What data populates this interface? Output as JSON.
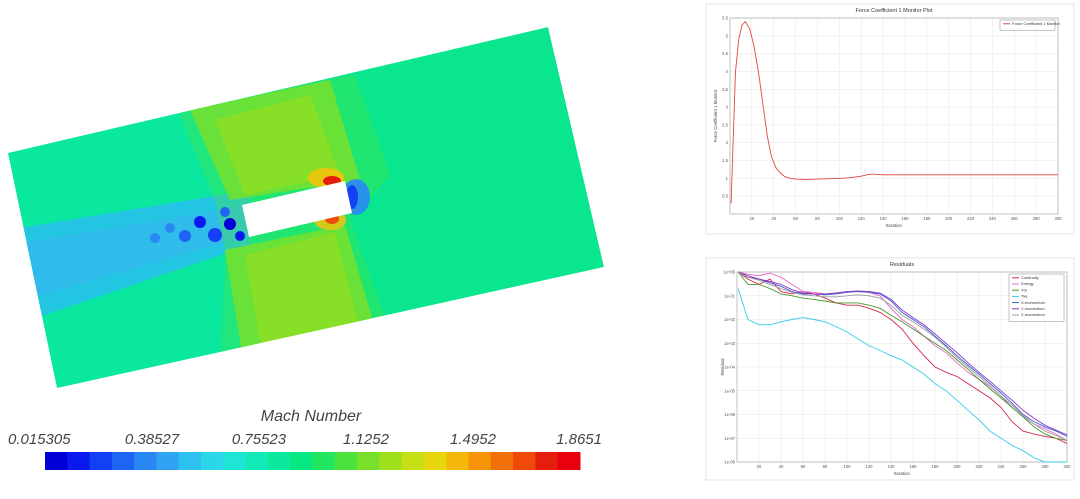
{
  "contour": {
    "colorbar_title": "Mach Number",
    "colorbar_ticks": [
      "0.015305",
      "0.38527",
      "0.75523",
      "1.1252",
      "1.4952",
      "1.8651"
    ],
    "colorbar_colors": [
      "#0000d6",
      "#0a1aef",
      "#1440f5",
      "#1e64f5",
      "#2a88f5",
      "#30a4f2",
      "#2ec0ef",
      "#2ad6e8",
      "#1fe6d4",
      "#14eab8",
      "#0ae99c",
      "#08e882",
      "#22e560",
      "#4ce23c",
      "#78e02a",
      "#a0df1c",
      "#c6de14",
      "#e8d60c",
      "#f5b80a",
      "#f59408",
      "#f27008",
      "#ef4a0a",
      "#e51d0d",
      "#e8000e"
    ]
  },
  "chart_data": [
    {
      "type": "line",
      "title": "Force Coefficient 1 Monitor Plot",
      "xlabel": "Iteration",
      "ylabel": "Force Coefficient 1 Monitor",
      "legend": [
        "Force Coefficient 1 Monitor"
      ],
      "legend_position": "top-right",
      "xlim": [
        0,
        300
      ],
      "ylim": [
        0,
        5.5
      ],
      "x_ticks": [
        "20",
        "40",
        "60",
        "80",
        "100",
        "120",
        "140",
        "160",
        "180",
        "200",
        "220",
        "240",
        "260",
        "280",
        "300"
      ],
      "y_ticks": [
        "0.5",
        "1",
        "1.5",
        "2",
        "2.5",
        "3",
        "3.5",
        "4",
        "4.5",
        "5",
        "5.5"
      ],
      "grid": true,
      "color": "#e0463f",
      "x": [
        1,
        3,
        5,
        8,
        11,
        14,
        18,
        22,
        26,
        30,
        34,
        38,
        42,
        46,
        50,
        55,
        60,
        70,
        80,
        90,
        100,
        110,
        120,
        125,
        130,
        135,
        140,
        150,
        160,
        180,
        200,
        220,
        240,
        260,
        280,
        300
      ],
      "y": [
        0.3,
        2.2,
        4.0,
        4.9,
        5.3,
        5.4,
        5.2,
        4.7,
        4.0,
        3.1,
        2.2,
        1.6,
        1.3,
        1.15,
        1.05,
        1.0,
        0.98,
        0.97,
        0.98,
        0.99,
        1.0,
        1.02,
        1.06,
        1.1,
        1.12,
        1.11,
        1.1,
        1.1,
        1.1,
        1.1,
        1.1,
        1.1,
        1.1,
        1.1,
        1.1,
        1.1
      ]
    },
    {
      "type": "line",
      "title": "Residuals",
      "xlabel": "Iteration",
      "ylabel": "Residual",
      "y_scale": "log",
      "xlim": [
        0,
        300
      ],
      "ylim": [
        1e-08,
        1
      ],
      "x_ticks": [
        "20",
        "40",
        "60",
        "80",
        "100",
        "120",
        "140",
        "160",
        "180",
        "200",
        "220",
        "240",
        "260",
        "280",
        "300"
      ],
      "y_ticks": [
        "1e-08",
        "1e-07",
        "1e-06",
        "1e-05",
        "1e-04",
        "1e-03",
        "1e-02",
        "1e-01",
        "1e+00"
      ],
      "grid": true,
      "legend_position": "top-right",
      "x": [
        1,
        10,
        20,
        30,
        40,
        50,
        60,
        70,
        80,
        90,
        100,
        110,
        120,
        130,
        140,
        150,
        160,
        170,
        180,
        190,
        200,
        210,
        220,
        230,
        240,
        250,
        260,
        270,
        280,
        290,
        300
      ],
      "series": [
        {
          "name": "Continuity",
          "color": "#d4274a",
          "values": [
            1,
            0.5,
            0.3,
            0.5,
            0.15,
            0.12,
            0.15,
            0.12,
            0.08,
            0.05,
            0.04,
            0.04,
            0.03,
            0.02,
            0.01,
            0.004,
            0.001,
            0.0003,
            0.0001,
            6e-05,
            4e-05,
            2e-05,
            1e-05,
            5e-06,
            2e-06,
            5e-07,
            2e-07,
            1.5e-07,
            1.2e-07,
            1e-07,
            6e-08
          ]
        },
        {
          "name": "Energy",
          "color": "#e868c8",
          "values": [
            1,
            0.8,
            0.7,
            0.9,
            0.6,
            0.3,
            0.15,
            0.14,
            0.12,
            0.12,
            0.15,
            0.15,
            0.14,
            0.1,
            0.03,
            0.01,
            0.005,
            0.002,
            0.0008,
            0.0004,
            0.00015,
            6e-05,
            3e-05,
            1.5e-05,
            6e-06,
            2e-06,
            8e-07,
            4e-07,
            2.5e-07,
            1.5e-07,
            8e-08
          ]
        },
        {
          "name": "Tdr",
          "color": "#4a9a2a",
          "values": [
            1,
            0.3,
            0.3,
            0.2,
            0.12,
            0.1,
            0.08,
            0.07,
            0.06,
            0.05,
            0.05,
            0.05,
            0.04,
            0.03,
            0.015,
            0.008,
            0.004,
            0.002,
            0.001,
            0.0005,
            0.0002,
            8e-05,
            3e-05,
            1.2e-05,
            5e-06,
            2e-06,
            8e-07,
            3e-07,
            1.5e-07,
            1e-07,
            8e-08
          ]
        },
        {
          "name": "Tke",
          "color": "#36cde8",
          "values": [
            0.2,
            0.01,
            0.006,
            0.006,
            0.008,
            0.01,
            0.012,
            0.01,
            0.008,
            0.005,
            0.003,
            0.0015,
            0.0008,
            0.0005,
            0.0003,
            0.0002,
            0.0001,
            5e-05,
            2e-05,
            1e-05,
            4e-06,
            1.5e-06,
            6e-07,
            2e-07,
            1e-07,
            5e-08,
            3e-08,
            1.5e-08,
            1e-08,
            1e-08,
            1e-08
          ]
        },
        {
          "name": "X-momentum",
          "color": "#3c5dd2",
          "values": [
            1,
            0.6,
            0.5,
            0.35,
            0.25,
            0.15,
            0.12,
            0.12,
            0.11,
            0.12,
            0.14,
            0.15,
            0.14,
            0.12,
            0.06,
            0.02,
            0.01,
            0.005,
            0.002,
            0.0008,
            0.0003,
            0.00012,
            5e-05,
            2e-05,
            8e-06,
            3e-06,
            1e-06,
            5e-07,
            3e-07,
            2e-07,
            1.2e-07
          ]
        },
        {
          "name": "Y-momentum",
          "color": "#8a36c8",
          "values": [
            1,
            0.7,
            0.5,
            0.4,
            0.3,
            0.18,
            0.13,
            0.12,
            0.12,
            0.13,
            0.15,
            0.16,
            0.15,
            0.13,
            0.07,
            0.025,
            0.012,
            0.006,
            0.0025,
            0.001,
            0.0004,
            0.00015,
            6e-05,
            2.5e-05,
            1e-05,
            4e-06,
            1.5e-06,
            7e-07,
            3.5e-07,
            2.2e-07,
            1.4e-07
          ]
        },
        {
          "name": "Z-momentum",
          "color": "#9e9e9e",
          "values": [
            1,
            0.6,
            0.45,
            0.3,
            0.2,
            0.14,
            0.11,
            0.1,
            0.09,
            0.09,
            0.1,
            0.11,
            0.1,
            0.08,
            0.04,
            0.015,
            0.008,
            0.004,
            0.0018,
            0.0007,
            0.00025,
            0.0001,
            4e-05,
            1.6e-05,
            6e-06,
            2.5e-06,
            9e-07,
            4e-07,
            2e-07,
            1.3e-07,
            8e-08
          ]
        }
      ]
    }
  ]
}
